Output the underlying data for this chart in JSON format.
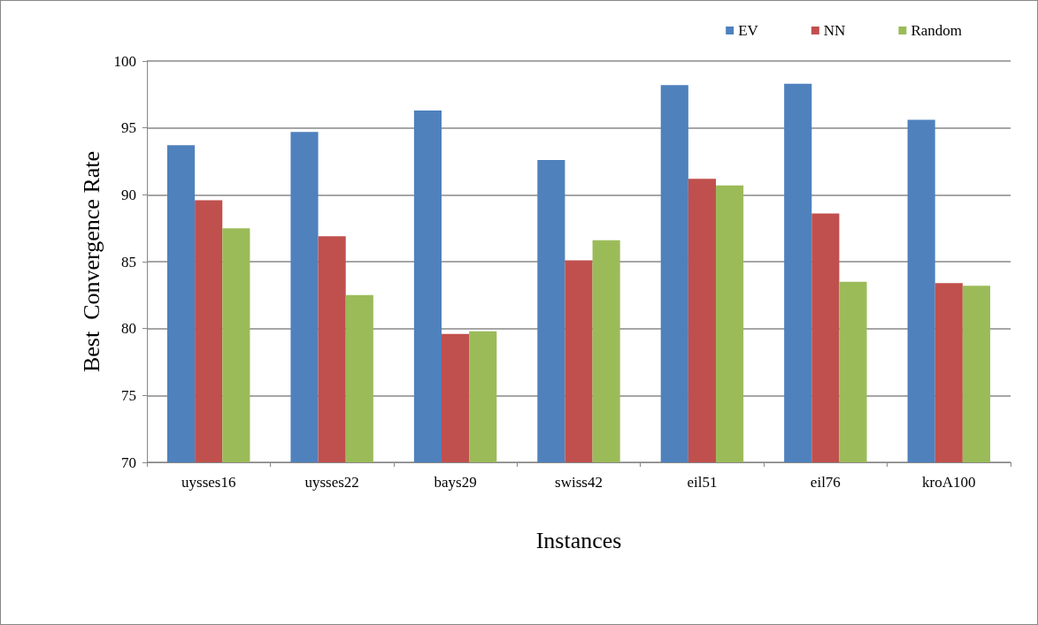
{
  "chart_data": {
    "type": "bar",
    "xlabel": "Instances",
    "ylabel": "Best  Convergence Rate",
    "categories": [
      "uysses16",
      "uysses22",
      "bays29",
      "swiss42",
      "eil51",
      "eil76",
      "kroA100"
    ],
    "series": [
      {
        "name": "EV",
        "color": "#4f81bd",
        "values": [
          93.7,
          94.7,
          96.3,
          92.6,
          98.2,
          98.3,
          95.6
        ]
      },
      {
        "name": "NN",
        "color": "#c0504d",
        "values": [
          89.6,
          86.9,
          79.6,
          85.1,
          91.2,
          88.6,
          83.4
        ]
      },
      {
        "name": "Random",
        "color": "#9bbb59",
        "values": [
          87.5,
          82.5,
          79.8,
          86.6,
          90.7,
          83.5,
          83.2
        ]
      }
    ],
    "ylim": [
      70,
      100
    ],
    "yticks": [
      70,
      75,
      80,
      85,
      90,
      95,
      100
    ],
    "grid": "y",
    "legend": "top right"
  }
}
